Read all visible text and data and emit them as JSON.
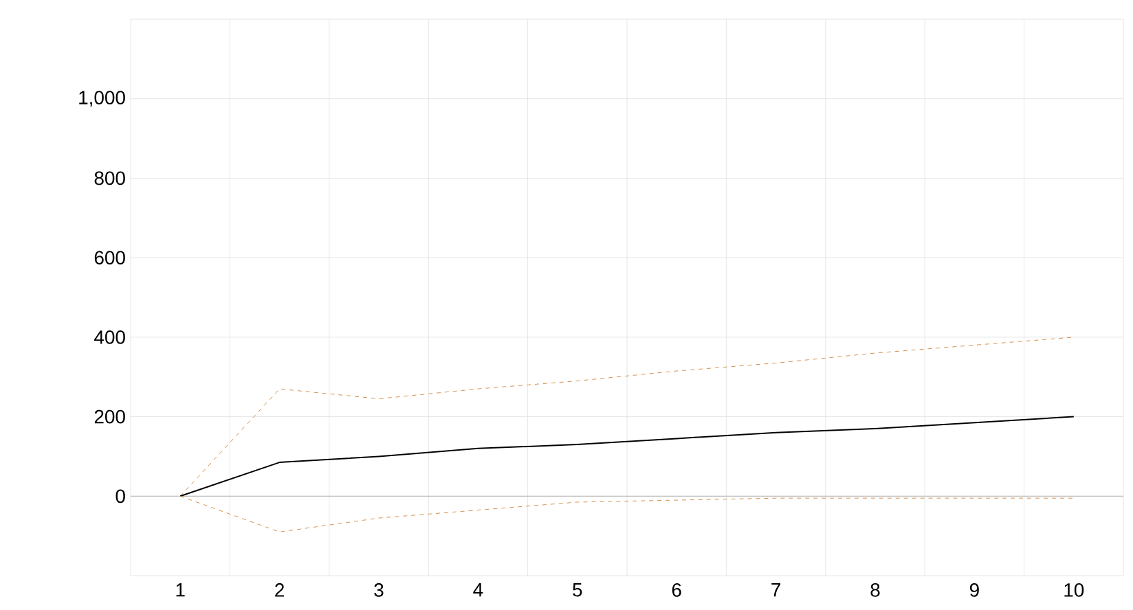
{
  "chart_data": {
    "type": "line",
    "categories": [
      "1",
      "2",
      "3",
      "4",
      "5",
      "6",
      "7",
      "8",
      "9",
      "10"
    ],
    "ylim": [
      -200,
      1200
    ],
    "yticks": [
      {
        "value": -200,
        "label": null
      },
      {
        "value": 0,
        "label": "0"
      },
      {
        "value": 200,
        "label": "200"
      },
      {
        "value": 400,
        "label": "400"
      },
      {
        "value": 600,
        "label": "600"
      },
      {
        "value": 800,
        "label": "800"
      },
      {
        "value": 1000,
        "label": "1,000"
      },
      {
        "value": 1200,
        "label": null
      }
    ],
    "grid": true,
    "marker": "none",
    "series": [
      {
        "color": "#d4914a",
        "line_style": "dashed",
        "values": [
          0,
          270,
          245,
          270,
          290,
          315,
          335,
          360,
          380,
          400
        ]
      },
      {
        "color": "#000000",
        "line_style": "solid",
        "values": [
          0,
          85,
          100,
          120,
          130,
          145,
          160,
          170,
          185,
          200
        ]
      },
      {
        "color": "#d4914a",
        "line_style": "dashed",
        "values": [
          0,
          -90,
          -55,
          -35,
          -15,
          -10,
          -5,
          -5,
          -5,
          -5
        ]
      }
    ]
  }
}
